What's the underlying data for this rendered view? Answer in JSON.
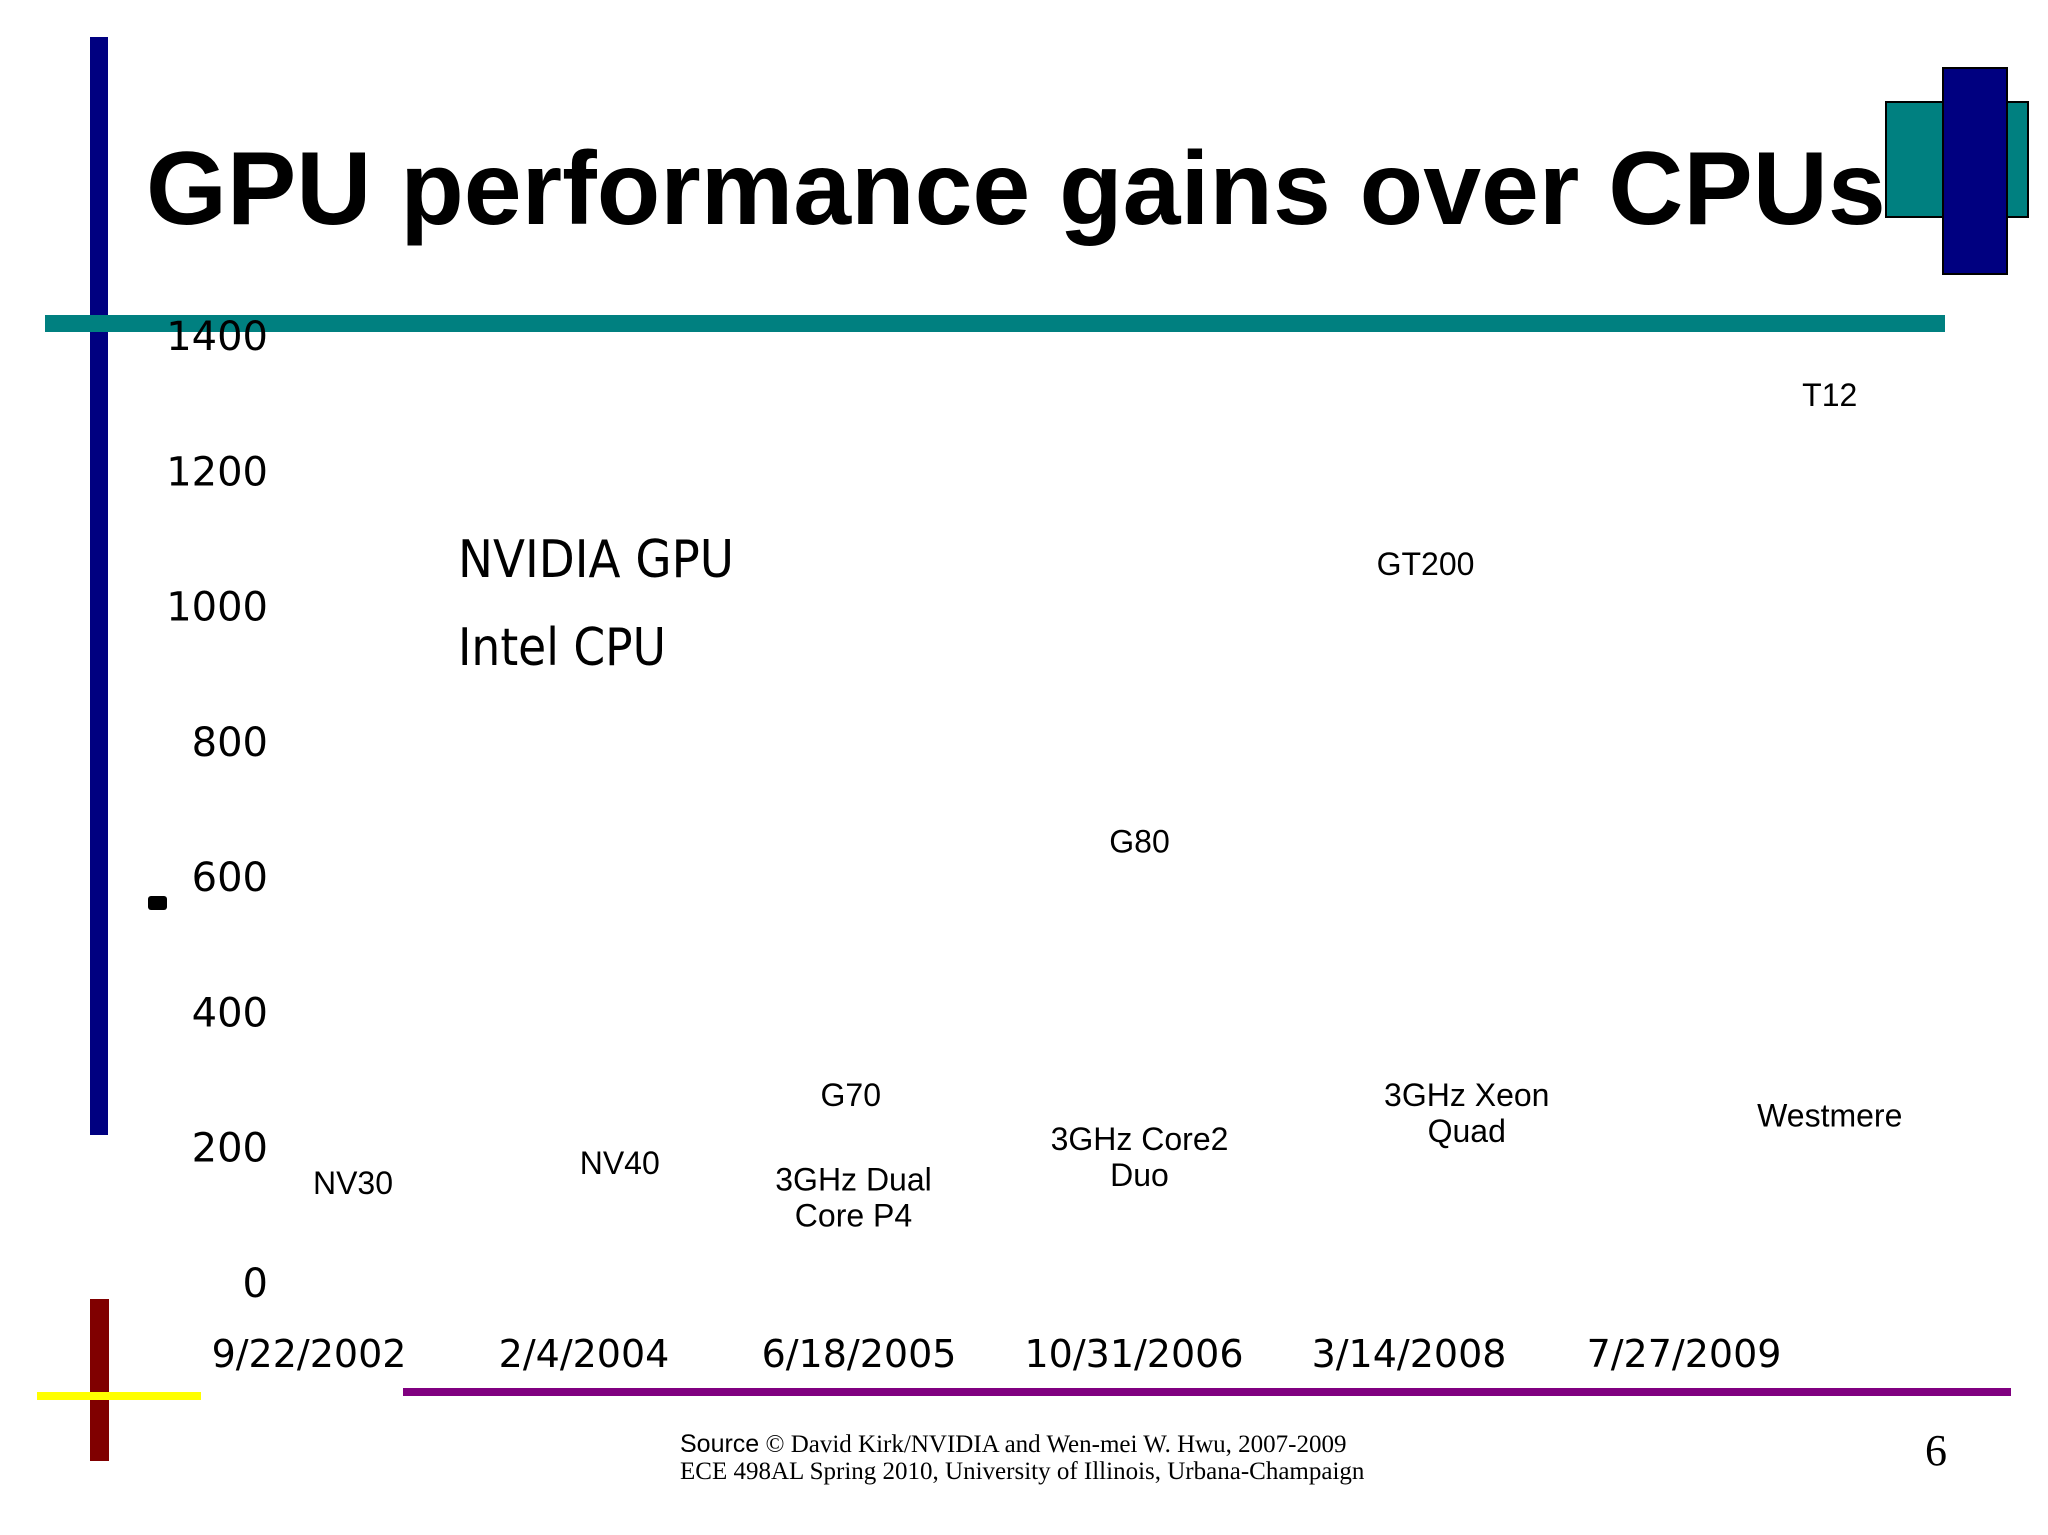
{
  "slide": {
    "title": "GPU performance gains over CPUs",
    "source_word": "Source",
    "source_rest": " © David Kirk/NVIDIA and Wen-mei W. Hwu, 2007-2009",
    "course_line": "ECE 498AL Spring 2010, University of Illinois, Urbana-Champaign",
    "page_number": "6",
    "colors": {
      "navy": "#000080",
      "teal": "#008080",
      "dark_red": "#800000",
      "yellow": "#ffff00",
      "purple": "#800080"
    }
  },
  "chart_data": {
    "type": "line",
    "title": "",
    "xlabel": "",
    "ylabel": "",
    "ylim": [
      0,
      1400
    ],
    "yticks": [
      0,
      200,
      400,
      600,
      800,
      1000,
      1200,
      1400
    ],
    "ytick_labels": [
      "0",
      "200",
      "400",
      "600",
      "800",
      "1000",
      "1200",
      "1400"
    ],
    "xticks": [
      "9/22/2002",
      "2/4/2004",
      "6/18/2005",
      "10/31/2006",
      "3/14/2008",
      "7/27/2009"
    ],
    "legend": [
      "NVIDIA GPU",
      "Intel CPU"
    ],
    "series": [
      {
        "name": "NVIDIA GPU",
        "values": []
      },
      {
        "name": "Intel CPU",
        "values": []
      }
    ],
    "annotations": [
      {
        "text": "NV30",
        "x_index": 0.16,
        "y": 130
      },
      {
        "text": "NV40",
        "x_index": 1.13,
        "y": 160
      },
      {
        "text": "G70",
        "x_index": 1.97,
        "y": 260
      },
      {
        "text": "3GHz Dual Core P4",
        "lines": [
          "3GHz Dual",
          "Core P4"
        ],
        "x_index": 1.98,
        "y": 135
      },
      {
        "text": "G80",
        "x_index": 3.02,
        "y": 635
      },
      {
        "text": "3GHz Core2 Duo",
        "lines": [
          "3GHz Core2",
          "Duo"
        ],
        "x_index": 3.02,
        "y": 195
      },
      {
        "text": "GT200",
        "x_index": 4.06,
        "y": 1045
      },
      {
        "text": "3GHz Xeon Quad",
        "lines": [
          "3GHz Xeon",
          "Quad"
        ],
        "x_index": 4.21,
        "y": 260
      },
      {
        "text": "T12",
        "x_index": 5.53,
        "y": 1295
      },
      {
        "text": "Westmere",
        "x_index": 5.53,
        "y": 230
      }
    ]
  }
}
